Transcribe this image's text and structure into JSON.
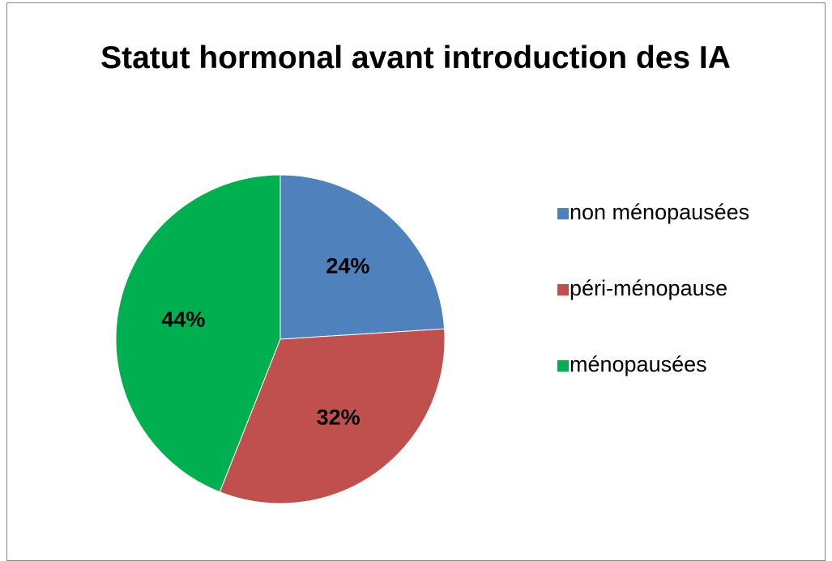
{
  "chart_data": {
    "type": "pie",
    "title": "Statut hormonal avant introduction des IA",
    "categories": [
      "non ménopausées",
      "péri-ménopause",
      "ménopausées"
    ],
    "values": [
      24,
      32,
      44
    ],
    "value_labels": [
      "24%",
      "32%",
      "44%"
    ],
    "colors": [
      "#4f81bd",
      "#c0504d",
      "#00b050"
    ],
    "legend": "right"
  }
}
